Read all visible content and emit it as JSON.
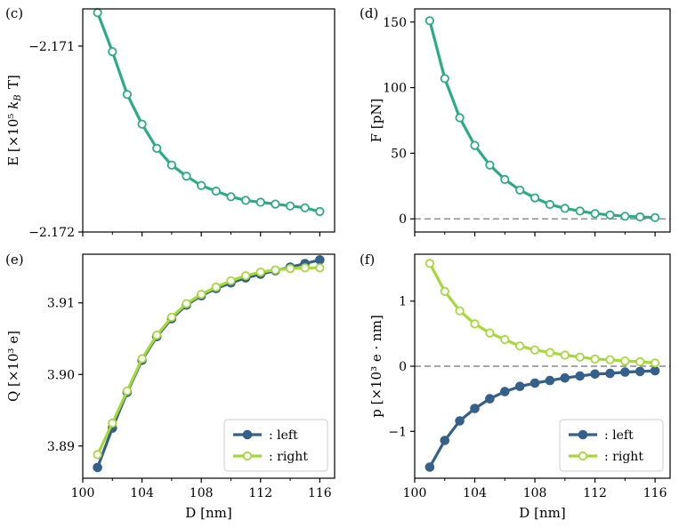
{
  "chart_data": [
    {
      "panel_label": "(c)",
      "type": "line",
      "ylabel": "E [×10⁵ k_B T]",
      "xlabel": "",
      "ylim": [
        -2.172,
        -2.1708
      ],
      "xlim": [
        100,
        117
      ],
      "yticks": [
        -2.172,
        -2.171
      ],
      "ytick_labels": [
        "−2.172",
        "−2.171"
      ],
      "xticks": [
        100,
        104,
        108,
        112,
        116
      ],
      "xtick_labels": [
        "",
        "",
        "",
        "",
        ""
      ],
      "zero_line": false,
      "series": [
        {
          "name": "E",
          "color": "#2bac82",
          "marker": "open",
          "x": [
            101,
            102,
            103,
            104,
            105,
            106,
            107,
            108,
            109,
            110,
            111,
            112,
            113,
            114,
            115,
            116
          ],
          "y": [
            -2.17082,
            -2.17103,
            -2.17126,
            -2.17142,
            -2.17155,
            -2.17164,
            -2.1717,
            -2.17175,
            -2.17178,
            -2.17181,
            -2.17183,
            -2.17184,
            -2.17185,
            -2.17186,
            -2.17187,
            -2.17189
          ]
        }
      ]
    },
    {
      "panel_label": "(d)",
      "type": "line",
      "ylabel": "F [pN]",
      "xlabel": "",
      "ylim": [
        -10,
        160
      ],
      "xlim": [
        100,
        117
      ],
      "yticks": [
        0,
        50,
        100,
        150
      ],
      "ytick_labels": [
        "0",
        "50",
        "100",
        "150"
      ],
      "xticks": [
        100,
        104,
        108,
        112,
        116
      ],
      "xtick_labels": [
        "",
        "",
        "",
        "",
        ""
      ],
      "zero_line": true,
      "series": [
        {
          "name": "F",
          "color": "#2bac82",
          "marker": "open",
          "x": [
            101,
            102,
            103,
            104,
            105,
            106,
            107,
            108,
            109,
            110,
            111,
            112,
            113,
            114,
            115,
            116
          ],
          "y": [
            151,
            107,
            77,
            56,
            41,
            30,
            22,
            16,
            11,
            8,
            6,
            4,
            3,
            2,
            1.5,
            1
          ]
        }
      ]
    },
    {
      "panel_label": "(e)",
      "type": "line",
      "ylabel": "Q [×10³ e]",
      "xlabel": "D [nm]",
      "ylim": [
        3.8855,
        3.9168
      ],
      "xlim": [
        100,
        117
      ],
      "yticks": [
        3.89,
        3.9,
        3.91
      ],
      "ytick_labels": [
        "3.89",
        "3.90",
        "3.91"
      ],
      "xticks": [
        100,
        104,
        108,
        112,
        116
      ],
      "xtick_labels": [
        "100",
        "104",
        "108",
        "112",
        "116"
      ],
      "zero_line": false,
      "legend": {
        "position": "bottom-right"
      },
      "series": [
        {
          "name": ": left",
          "color": "#34608a",
          "marker": "filled",
          "x": [
            101,
            102,
            103,
            104,
            105,
            106,
            107,
            108,
            109,
            110,
            111,
            112,
            113,
            114,
            115,
            116
          ],
          "y": [
            3.887,
            3.8925,
            3.8975,
            3.902,
            3.9053,
            3.9078,
            3.9097,
            3.911,
            3.912,
            3.9128,
            3.9135,
            3.914,
            3.9145,
            3.915,
            3.9155,
            3.916
          ]
        },
        {
          "name": ": right",
          "color": "#a6d83a",
          "marker": "open",
          "x": [
            101,
            102,
            103,
            104,
            105,
            106,
            107,
            108,
            109,
            110,
            111,
            112,
            113,
            114,
            115,
            116
          ],
          "y": [
            3.8888,
            3.8932,
            3.8977,
            3.9022,
            3.9055,
            3.908,
            3.9099,
            3.9112,
            3.9122,
            3.9131,
            3.9138,
            3.9143,
            3.9146,
            3.9148,
            3.9149,
            3.9149
          ]
        }
      ]
    },
    {
      "panel_label": "(f)",
      "type": "line",
      "ylabel": "p [×10³ e · nm]",
      "xlabel": "D [nm]",
      "ylim": [
        -1.72,
        1.72
      ],
      "xlim": [
        100,
        117
      ],
      "yticks": [
        -1,
        0,
        1
      ],
      "ytick_labels": [
        "−1",
        "0",
        "1"
      ],
      "xticks": [
        100,
        104,
        108,
        112,
        116
      ],
      "xtick_labels": [
        "100",
        "104",
        "108",
        "112",
        "116"
      ],
      "zero_line": true,
      "legend": {
        "position": "bottom-right"
      },
      "series": [
        {
          "name": ": left",
          "color": "#34608a",
          "marker": "filled",
          "x": [
            101,
            102,
            103,
            104,
            105,
            106,
            107,
            108,
            109,
            110,
            111,
            112,
            113,
            114,
            115,
            116
          ],
          "y": [
            -1.55,
            -1.14,
            -0.84,
            -0.65,
            -0.5,
            -0.39,
            -0.31,
            -0.26,
            -0.22,
            -0.18,
            -0.15,
            -0.12,
            -0.11,
            -0.09,
            -0.08,
            -0.07
          ]
        },
        {
          "name": ": right",
          "color": "#a6d83a",
          "marker": "open",
          "x": [
            101,
            102,
            103,
            104,
            105,
            106,
            107,
            108,
            109,
            110,
            111,
            112,
            113,
            114,
            115,
            116
          ],
          "y": [
            1.58,
            1.15,
            0.85,
            0.65,
            0.51,
            0.41,
            0.31,
            0.25,
            0.21,
            0.17,
            0.14,
            0.11,
            0.1,
            0.08,
            0.07,
            0.05
          ]
        }
      ]
    }
  ]
}
